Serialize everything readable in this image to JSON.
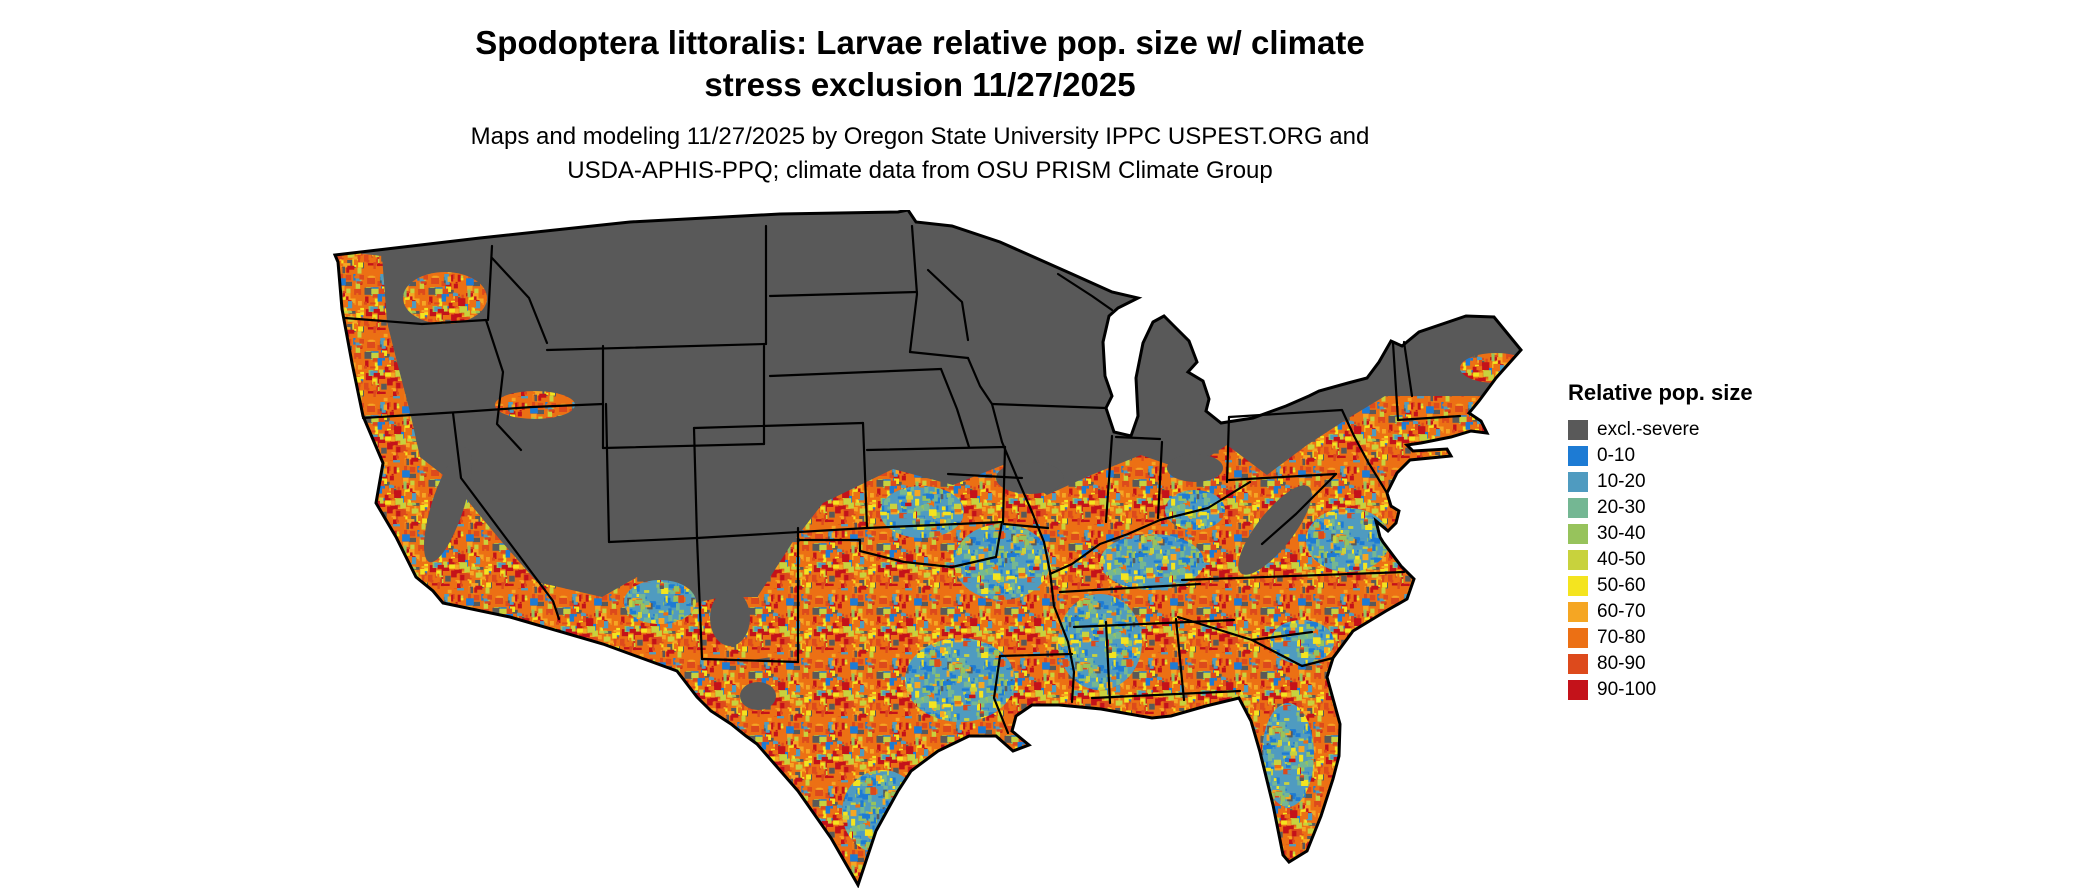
{
  "title": {
    "line1": "Spodoptera littoralis: Larvae relative pop. size w/ climate",
    "line2": "stress exclusion 11/27/2025"
  },
  "subtitle": {
    "line1": "Maps and modeling 11/27/2025 by Oregon State University IPPC USPEST.ORG and",
    "line2": "USDA-APHIS-PPQ; climate data from OSU PRISM Climate Group"
  },
  "legend": {
    "title": "Relative pop. size",
    "items": [
      {
        "label": "excl.-severe",
        "color": "#595959"
      },
      {
        "label": "0-10",
        "color": "#1d7bd4"
      },
      {
        "label": "10-20",
        "color": "#4f9bc0"
      },
      {
        "label": "20-30",
        "color": "#74b793"
      },
      {
        "label": "30-40",
        "color": "#97c35c"
      },
      {
        "label": "40-50",
        "color": "#c8d23d"
      },
      {
        "label": "50-60",
        "color": "#f4e41f"
      },
      {
        "label": "60-70",
        "color": "#f5a623"
      },
      {
        "label": "70-80",
        "color": "#ec7014"
      },
      {
        "label": "80-90",
        "color": "#dd4a1c"
      },
      {
        "label": "90-100",
        "color": "#c4121a"
      }
    ]
  }
}
